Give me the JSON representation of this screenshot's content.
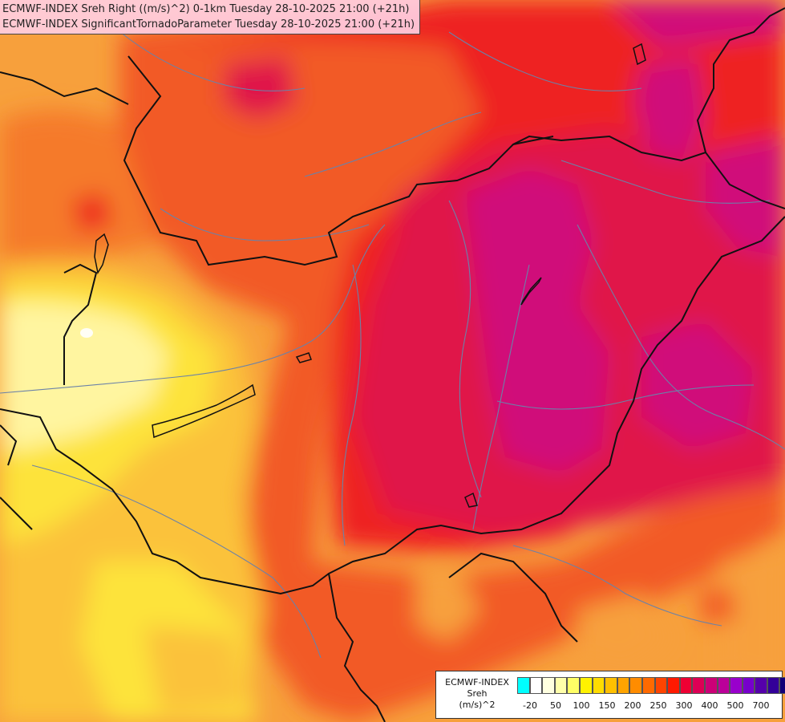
{
  "header": {
    "line1": "ECMWF-INDEX Sreh Right ((m/s)^2) 0-1km Tuesday 28-10-2025 21:00 (+21h)",
    "line2": "ECMWF-INDEX SignificantTornadoParameter Tuesday 28-10-2025 21:00 (+21h)"
  },
  "legend": {
    "model": "ECMWF-INDEX",
    "parameter": "Sreh",
    "unit": "(m/s)^2",
    "colors": [
      "#00ffff",
      "#ffffff",
      "#ffffe0",
      "#ffffaa",
      "#ffff66",
      "#fff200",
      "#ffdc00",
      "#ffc000",
      "#ffa400",
      "#ff8c00",
      "#ff6a00",
      "#ff4400",
      "#ff1a00",
      "#ee0033",
      "#dd0055",
      "#cc0077",
      "#bb0099",
      "#9900cc",
      "#7700cc",
      "#5500aa",
      "#330099",
      "#110077"
    ],
    "tick_labels": [
      "-20",
      "50",
      "100",
      "150",
      "200",
      "250",
      "300",
      "400",
      "500",
      "700"
    ]
  },
  "map_colors": {
    "orange": "#f7a03c",
    "dark_orange": "#f57a2a",
    "red_orange": "#f25a28",
    "red": "#ee2222",
    "crimson": "#e0174a",
    "magenta": "#d0107a",
    "yellow_orange": "#fbc23a",
    "yellow": "#fde33a",
    "pale_yellow": "#fff5a0",
    "borders": "#111111",
    "rivers": "#6b82a8"
  }
}
